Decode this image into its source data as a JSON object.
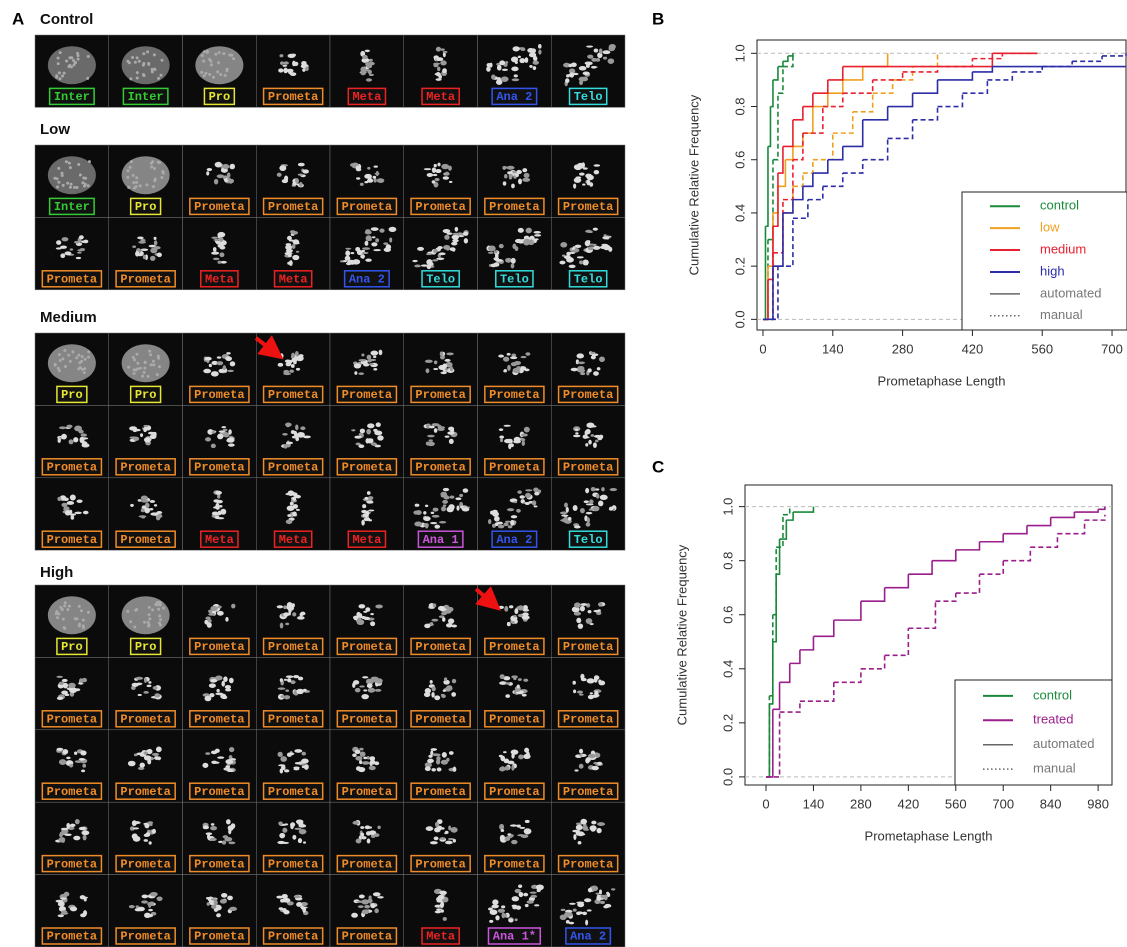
{
  "panel_a": {
    "label": "A",
    "phase_colors": {
      "Inter": "#33cc33",
      "Pro": "#e6e633",
      "Prometa": "#f08c28",
      "Meta": "#ee2222",
      "Ana 1": "#cc55dd",
      "Ana 1*": "#cc55dd",
      "Ana 2": "#3355ee",
      "Telo": "#33dddd"
    },
    "groups": [
      {
        "title": "Control",
        "rows": [
          [
            "Inter",
            "Inter",
            "Pro",
            "Prometa",
            "Meta",
            "Meta",
            "Ana 2",
            "Telo"
          ]
        ]
      },
      {
        "title": "Low",
        "rows": [
          [
            "Inter",
            "Pro",
            "Prometa",
            "Prometa",
            "Prometa",
            "Prometa",
            "Prometa",
            "Prometa"
          ],
          [
            "Prometa",
            "Prometa",
            "Meta",
            "Meta",
            "Ana 2",
            "Telo",
            "Telo",
            "Telo"
          ]
        ]
      },
      {
        "title": "Medium",
        "rows": [
          [
            "Pro",
            "Pro",
            "Prometa",
            "Prometa",
            "Prometa",
            "Prometa",
            "Prometa",
            "Prometa"
          ],
          [
            "Prometa",
            "Prometa",
            "Prometa",
            "Prometa",
            "Prometa",
            "Prometa",
            "Prometa",
            "Prometa"
          ],
          [
            "Prometa",
            "Prometa",
            "Meta",
            "Meta",
            "Meta",
            "Ana 1",
            "Ana 2",
            "Telo"
          ]
        ]
      },
      {
        "title": "High",
        "rows": [
          [
            "Pro",
            "Pro",
            "Prometa",
            "Prometa",
            "Prometa",
            "Prometa",
            "Prometa",
            "Prometa"
          ],
          [
            "Prometa",
            "Prometa",
            "Prometa",
            "Prometa",
            "Prometa",
            "Prometa",
            "Prometa",
            "Prometa"
          ],
          [
            "Prometa",
            "Prometa",
            "Prometa",
            "Prometa",
            "Prometa",
            "Prometa",
            "Prometa",
            "Prometa"
          ],
          [
            "Prometa",
            "Prometa",
            "Prometa",
            "Prometa",
            "Prometa",
            "Prometa",
            "Prometa",
            "Prometa"
          ],
          [
            "Prometa",
            "Prometa",
            "Prometa",
            "Prometa",
            "Prometa",
            "Meta",
            "Ana 1*",
            "Ana 2"
          ]
        ]
      }
    ]
  },
  "chart_data": [
    {
      "type": "step",
      "panel_label": "B",
      "xlabel": "Prometaphase Length",
      "ylabel": "Cumulative Relative Frequency",
      "xlim": [
        -12,
        728
      ],
      "ylim": [
        -0.04,
        1.05
      ],
      "xticks": [
        0,
        140,
        280,
        420,
        560,
        700
      ],
      "yticks": [
        {
          "value": 0,
          "label": "0.0"
        },
        0.2,
        0.4,
        0.6,
        0.8,
        {
          "value": 1,
          "label": "1.0"
        }
      ],
      "legend": "bottom right",
      "styles": [
        {
          "name": "automated",
          "dash": "solid"
        },
        {
          "name": "manual",
          "dash": "dotted"
        }
      ],
      "series": [
        {
          "name": "control",
          "color": "#1a8a3a",
          "automated": {
            "x": [
              0,
              5,
              10,
              15,
              20,
              30,
              40,
              50,
              60
            ],
            "values": [
              0,
              0.35,
              0.65,
              0.8,
              0.9,
              0.95,
              0.97,
              0.99,
              1.0
            ]
          },
          "manual": {
            "x": [
              0,
              10,
              20,
              30,
              40,
              60
            ],
            "values": [
              0,
              0.3,
              0.6,
              0.85,
              0.95,
              1.0
            ]
          }
        },
        {
          "name": "low",
          "color": "#f0a020",
          "automated": {
            "x": [
              0,
              10,
              20,
              30,
              45,
              60,
              80,
              100,
              130,
              160,
              200,
              250
            ],
            "values": [
              0,
              0.2,
              0.4,
              0.5,
              0.6,
              0.65,
              0.7,
              0.8,
              0.85,
              0.9,
              0.95,
              1.0
            ]
          },
          "manual": {
            "x": [
              0,
              20,
              40,
              60,
              80,
              100,
              140,
              180,
              220,
              260,
              300,
              350
            ],
            "values": [
              0,
              0.2,
              0.4,
              0.5,
              0.55,
              0.6,
              0.7,
              0.78,
              0.85,
              0.9,
              0.95,
              1.0
            ]
          }
        },
        {
          "name": "medium",
          "color": "#e82030",
          "automated": {
            "x": [
              0,
              10,
              20,
              30,
              40,
              60,
              80,
              100,
              130,
              160,
              460,
              550
            ],
            "values": [
              0,
              0.15,
              0.35,
              0.55,
              0.65,
              0.75,
              0.8,
              0.85,
              0.9,
              0.95,
              1.0,
              1.0
            ]
          },
          "manual": {
            "x": [
              0,
              20,
              40,
              60,
              80,
              120,
              160,
              220,
              280,
              350,
              420,
              480,
              550
            ],
            "values": [
              0,
              0.25,
              0.45,
              0.6,
              0.7,
              0.8,
              0.85,
              0.9,
              0.93,
              0.95,
              0.98,
              1.0,
              1.0
            ]
          }
        },
        {
          "name": "high",
          "color": "#2d2da8",
          "automated": {
            "x": [
              0,
              20,
              40,
              60,
              80,
              100,
              130,
              160,
              200,
              250,
              300,
              350,
              420,
              460,
              728
            ],
            "values": [
              0,
              0.2,
              0.4,
              0.45,
              0.5,
              0.55,
              0.6,
              0.65,
              0.75,
              0.8,
              0.85,
              0.9,
              0.93,
              0.95,
              0.95
            ]
          },
          "manual": {
            "x": [
              0,
              30,
              60,
              90,
              120,
              160,
              200,
              250,
              300,
              350,
              400,
              450,
              500,
              560,
              620,
              680,
              728
            ],
            "values": [
              0,
              0.2,
              0.38,
              0.45,
              0.5,
              0.55,
              0.6,
              0.68,
              0.75,
              0.8,
              0.85,
              0.9,
              0.93,
              0.95,
              0.97,
              0.99,
              1.0
            ]
          }
        }
      ]
    },
    {
      "type": "step",
      "panel_label": "C",
      "xlabel": "Prometaphase Length",
      "ylabel": "Cumulative Relative Frequency",
      "xlim": [
        -62,
        1021
      ],
      "ylim": [
        -0.03,
        1.08
      ],
      "xticks": [
        0,
        140,
        280,
        420,
        560,
        700,
        840,
        980
      ],
      "yticks": [
        {
          "value": 0,
          "label": "0.0"
        },
        0.2,
        0.4,
        0.6,
        0.8,
        {
          "value": 1,
          "label": "1.0"
        }
      ],
      "legend": "bottom right",
      "styles": [
        {
          "name": "automated",
          "dash": "solid"
        },
        {
          "name": "manual",
          "dash": "dotted"
        }
      ],
      "series": [
        {
          "name": "control",
          "color": "#1a8a3a",
          "automated": {
            "x": [
              0,
              10,
              20,
              30,
              40,
              60,
              80,
              140
            ],
            "values": [
              0,
              0.27,
              0.5,
              0.75,
              0.88,
              0.95,
              0.98,
              1.0
            ]
          },
          "manual": {
            "x": [
              0,
              10,
              20,
              30,
              50,
              70
            ],
            "values": [
              0,
              0.3,
              0.6,
              0.85,
              0.97,
              1.0
            ]
          }
        },
        {
          "name": "treated",
          "color": "#9a1f8c",
          "automated": {
            "x": [
              0,
              20,
              40,
              70,
              100,
              140,
              200,
              280,
              350,
              420,
              490,
              560,
              630,
              700,
              770,
              840,
              910,
              980,
              1000
            ],
            "values": [
              0,
              0.25,
              0.35,
              0.42,
              0.47,
              0.52,
              0.58,
              0.65,
              0.7,
              0.75,
              0.8,
              0.84,
              0.87,
              0.9,
              0.93,
              0.96,
              0.98,
              0.99,
              1.0
            ]
          },
          "manual": {
            "x": [
              0,
              40,
              100,
              200,
              280,
              350,
              420,
              500,
              560,
              630,
              700,
              780,
              860,
              940,
              1000
            ],
            "values": [
              0,
              0.24,
              0.28,
              0.35,
              0.4,
              0.45,
              0.55,
              0.65,
              0.68,
              0.75,
              0.8,
              0.85,
              0.9,
              0.95,
              0.97
            ]
          }
        }
      ]
    }
  ]
}
